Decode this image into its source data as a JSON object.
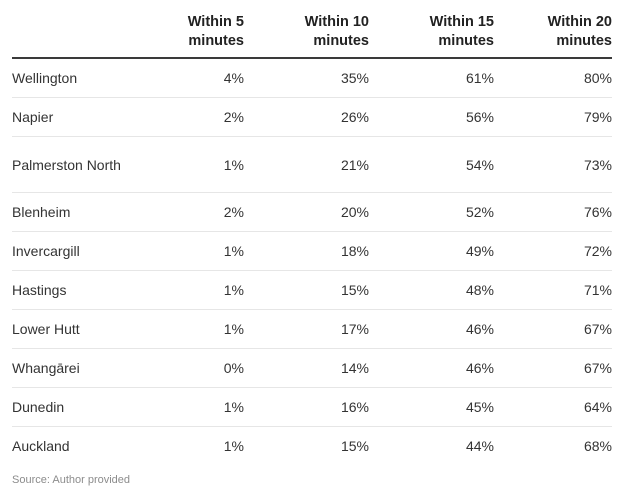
{
  "chart_data": {
    "type": "table",
    "columns": [
      "",
      "Within 5 minutes",
      "Within 10 minutes",
      "Within 15 minutes",
      "Within 20 minutes"
    ],
    "header_lines": [
      [
        "",
        ""
      ],
      [
        "Within 5",
        "minutes"
      ],
      [
        "Within 10",
        "minutes"
      ],
      [
        "Within 15",
        "minutes"
      ],
      [
        "Within 20",
        "minutes"
      ]
    ],
    "rows": [
      {
        "name": "Wellington",
        "values": [
          "4%",
          "35%",
          "61%",
          "80%"
        ]
      },
      {
        "name": "Napier",
        "values": [
          "2%",
          "26%",
          "56%",
          "79%"
        ]
      },
      {
        "name": "Palmerston North",
        "values": [
          "1%",
          "21%",
          "54%",
          "73%"
        ]
      },
      {
        "name": "Blenheim",
        "values": [
          "2%",
          "20%",
          "52%",
          "76%"
        ]
      },
      {
        "name": "Invercargill",
        "values": [
          "1%",
          "18%",
          "49%",
          "72%"
        ]
      },
      {
        "name": "Hastings",
        "values": [
          "1%",
          "15%",
          "48%",
          "71%"
        ]
      },
      {
        "name": "Lower Hutt",
        "values": [
          "1%",
          "17%",
          "46%",
          "67%"
        ]
      },
      {
        "name": "Whangārei",
        "values": [
          "0%",
          "14%",
          "46%",
          "67%"
        ]
      },
      {
        "name": "Dunedin",
        "values": [
          "1%",
          "16%",
          "45%",
          "64%"
        ]
      },
      {
        "name": "Auckland",
        "values": [
          "1%",
          "15%",
          "44%",
          "68%"
        ]
      }
    ]
  },
  "source": "Source: Author provided"
}
